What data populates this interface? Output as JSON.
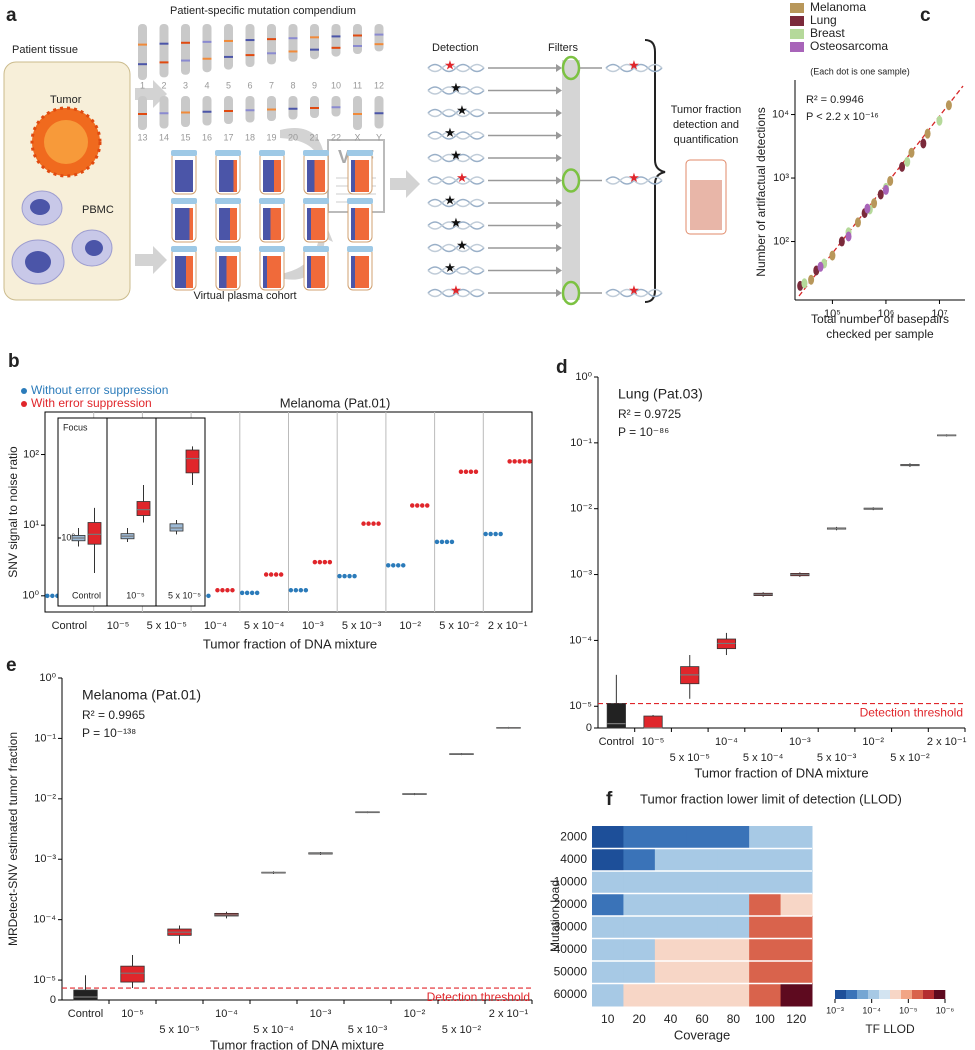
{
  "diagram": {
    "panel": "a",
    "header": "Patient-specific mutation compendium",
    "tissue": "Patient tissue",
    "tumor": "Tumor",
    "pbmc": "PBMC",
    "vcf": "VCF",
    "detection": "Detection",
    "filters": "Filters",
    "result": [
      "Tumor fraction",
      "detection and",
      "quantification"
    ],
    "cohort": "Virtual plasma cohort",
    "chromosomes_row1": [
      "1",
      "2",
      "3",
      "4",
      "5",
      "6",
      "7",
      "8",
      "9",
      "10",
      "11",
      "12"
    ],
    "chromosomes_row2": [
      "13",
      "14",
      "15",
      "16",
      "17",
      "18",
      "19",
      "20",
      "21",
      "22",
      "X",
      "Y"
    ]
  },
  "chart_data": [
    {
      "panel": "c",
      "type": "scatter",
      "annotations": [
        "(Each dot is one sample)",
        "R² = 0.9946",
        "P <  2.2 x 10⁻¹⁶"
      ],
      "xlabel": [
        "Total number of basepairs",
        "checked per sample"
      ],
      "ylabel": "Number of artifactual detections",
      "xscale": "log",
      "yscale": "log",
      "xlim": [
        20000,
        30000000
      ],
      "ylim": [
        12,
        35000
      ],
      "xticks": [
        {
          "value": 100000,
          "label": "10⁵"
        },
        {
          "value": 1000000,
          "label": "10⁶"
        },
        {
          "value": 10000000,
          "label": "10⁷"
        }
      ],
      "yticks": [
        {
          "value": 100,
          "label": "10²"
        },
        {
          "value": 1000,
          "label": "10³"
        },
        {
          "value": 10000,
          "label": "10⁴"
        }
      ],
      "series": [
        {
          "name": "Melanoma",
          "color": "#b8975a",
          "x": [
            40000,
            100000,
            300000,
            600000,
            1200000,
            3000000,
            6000000,
            15000000
          ],
          "y": [
            25,
            60,
            200,
            400,
            900,
            2500,
            5000,
            14000
          ]
        },
        {
          "name": "Lung",
          "color": "#7b2a3b",
          "x": [
            25000,
            50000,
            150000,
            400000,
            800000,
            2000000,
            5000000
          ],
          "y": [
            20,
            35,
            100,
            280,
            550,
            1500,
            3500
          ]
        },
        {
          "name": "Breast",
          "color": "#b5d99a",
          "x": [
            30000,
            70000,
            200000,
            500000,
            1000000,
            2500000,
            10000000
          ],
          "y": [
            22,
            45,
            140,
            320,
            700,
            1800,
            8000
          ]
        },
        {
          "name": "Osteosarcoma",
          "color": "#a864b9",
          "x": [
            60000,
            200000,
            450000,
            1000000
          ],
          "y": [
            40,
            120,
            330,
            650
          ]
        }
      ]
    },
    {
      "panel": "b",
      "type": "dot",
      "title": "Melanoma (Pat.01)",
      "xlabel": "Tumor fraction of DNA mixture",
      "ylabel": "SNV signal to noise ratio",
      "yscale": "log",
      "ylim": [
        0.59,
        400
      ],
      "yticks": [
        {
          "value": 1,
          "label": "10⁰"
        },
        {
          "value": 10,
          "label": "10¹"
        },
        {
          "value": 100,
          "label": "10²"
        }
      ],
      "categories": [
        "Control",
        "10⁻⁵",
        "5 x 10⁻⁵",
        "10⁻⁴",
        "5 x 10⁻⁴",
        "10⁻³",
        "5 x 10⁻³",
        "10⁻²",
        "5 x 10⁻²",
        "2 x 10⁻¹"
      ],
      "series": [
        {
          "name": "Without error suppression",
          "color": "#2b7bba",
          "values": [
            1,
            1,
            1,
            1,
            1.1,
            1.2,
            1.9,
            2.7,
            5.8,
            7.5
          ]
        },
        {
          "name": "With error suppression",
          "color": "#e0262b",
          "values": [
            1,
            1.05,
            1.1,
            1.2,
            2.0,
            3.0,
            10.5,
            19,
            57,
            80
          ]
        }
      ],
      "inset": {
        "title": "Focus",
        "categories": [
          "Control",
          "10⁻⁵",
          "5 x 10⁻⁵"
        ],
        "yscale": "log",
        "ylim": [
          0.3,
          13
        ],
        "yticks": [
          {
            "value": 1,
            "label": "10⁰"
          }
        ],
        "box_colors": [
          "#9dbad6",
          "#e0262b"
        ],
        "boxes": [
          [
            {
              "min": 0.8,
              "q1": 0.93,
              "median": 1.0,
              "q3": 1.07,
              "max": 1.3
            },
            {
              "min": 0.4,
              "q1": 0.85,
              "median": 1.1,
              "q3": 1.5,
              "max": 2.2
            }
          ],
          [
            {
              "min": 0.9,
              "q1": 0.98,
              "median": 1.05,
              "q3": 1.12,
              "max": 1.3
            },
            {
              "min": 1.5,
              "q1": 1.8,
              "median": 2.1,
              "q3": 2.6,
              "max": 4
            }
          ],
          [
            {
              "min": 1.1,
              "q1": 1.2,
              "median": 1.3,
              "q3": 1.45,
              "max": 1.6
            },
            {
              "min": 4,
              "q1": 5.5,
              "median": 8,
              "q3": 10,
              "max": 11
            }
          ]
        ]
      }
    },
    {
      "panel": "d",
      "type": "box",
      "annotations": [
        "Lung (Pat.03)",
        "R² = 0.9725",
        "P = 10⁻⁸⁶"
      ],
      "xlabel": "Tumor fraction of DNA mixture",
      "yscale": "symlog",
      "ylim": [
        0,
        1
      ],
      "yticks": [
        0,
        {
          "value": 1e-05,
          "label": "10⁻⁵"
        },
        {
          "value": 0.0001,
          "label": "10⁻⁴"
        },
        {
          "value": 0.001,
          "label": "10⁻³"
        },
        {
          "value": 0.01,
          "label": "10⁻²"
        },
        {
          "value": 0.1,
          "label": "10⁻¹"
        },
        {
          "value": 1,
          "label": "10⁰"
        }
      ],
      "threshold": {
        "value": 1.1e-05,
        "label": "Detection threshold"
      },
      "categories": [
        "Control",
        "10⁻⁵",
        "5 x 10⁻⁵",
        "10⁻⁴",
        "5 x 10⁻⁴",
        "10⁻³",
        "5 x 10⁻³",
        "10⁻²",
        "5 x 10⁻²",
        "2 x 10⁻¹"
      ],
      "colors": [
        "#222222",
        "#e0262b",
        "#e0262b",
        "#e0262b",
        "#e0262b",
        "#e0262b",
        "#e0262b",
        "#e0262b",
        "#e0262b",
        "#e0262b"
      ],
      "boxes": [
        {
          "min": 0,
          "q1": 0,
          "median": 2e-06,
          "q3": 1.1e-05,
          "max": 3e-05
        },
        {
          "min": 0,
          "q1": 0,
          "median": 0,
          "q3": 5.5e-06,
          "max": 6e-06
        },
        {
          "min": 1.3e-05,
          "q1": 2.2e-05,
          "median": 3e-05,
          "q3": 4e-05,
          "max": 6e-05
        },
        {
          "min": 6e-05,
          "q1": 7.5e-05,
          "median": 9e-05,
          "q3": 0.000105,
          "max": 0.00013
        },
        {
          "min": 0.00046,
          "q1": 0.00048,
          "median": 0.0005,
          "q3": 0.00052,
          "max": 0.00054
        },
        {
          "min": 0.00092,
          "q1": 0.00096,
          "median": 0.001,
          "q3": 0.00104,
          "max": 0.00108
        },
        {
          "min": 0.0047,
          "q1": 0.0049,
          "median": 0.005,
          "q3": 0.0051,
          "max": 0.0053
        },
        {
          "min": 0.0095,
          "q1": 0.0098,
          "median": 0.01,
          "q3": 0.0102,
          "max": 0.0105
        },
        {
          "min": 0.043,
          "q1": 0.045,
          "median": 0.046,
          "q3": 0.047,
          "max": 0.049
        },
        {
          "min": 0.125,
          "q1": 0.128,
          "median": 0.13,
          "q3": 0.132,
          "max": 0.135
        }
      ]
    },
    {
      "panel": "e",
      "type": "box",
      "annotations": [
        "Melanoma (Pat.01)",
        "R² = 0.9965",
        "P = 10⁻¹³⁸"
      ],
      "xlabel": "Tumor fraction of DNA mixture",
      "ylabel": "MRDetect-SNV estimated tumor fraction",
      "yscale": "symlog",
      "ylim": [
        0,
        1
      ],
      "yticks": [
        0,
        {
          "value": 1e-05,
          "label": "10⁻⁵"
        },
        {
          "value": 0.0001,
          "label": "10⁻⁴"
        },
        {
          "value": 0.001,
          "label": "10⁻³"
        },
        {
          "value": 0.01,
          "label": "10⁻²"
        },
        {
          "value": 0.1,
          "label": "10⁻¹"
        },
        {
          "value": 1,
          "label": "10⁰"
        }
      ],
      "threshold": {
        "value": 6e-06,
        "label": "Detection threshold"
      },
      "categories": [
        "Control",
        "10⁻⁵",
        "5 x 10⁻⁵",
        "10⁻⁴",
        "5 x 10⁻⁴",
        "10⁻³",
        "5 x 10⁻³",
        "10⁻²",
        "5 x 10⁻²",
        "2 x 10⁻¹"
      ],
      "colors": [
        "#222222",
        "#e0262b",
        "#e0262b",
        "#e0262b",
        "#e0262b",
        "#e0262b",
        "#e0262b",
        "#e0262b",
        "#e0262b",
        "#e0262b"
      ],
      "boxes": [
        {
          "min": 0,
          "q1": 0,
          "median": 1.5e-06,
          "q3": 5e-06,
          "max": 1.2e-05
        },
        {
          "min": 6e-06,
          "q1": 9e-06,
          "median": 1.3e-05,
          "q3": 1.7e-05,
          "max": 2.6e-05
        },
        {
          "min": 4e-05,
          "q1": 5.5e-05,
          "median": 6.2e-05,
          "q3": 7e-05,
          "max": 8e-05
        },
        {
          "min": 0.000105,
          "q1": 0.000115,
          "median": 0.00012,
          "q3": 0.000127,
          "max": 0.000135
        },
        {
          "min": 0.00057,
          "q1": 0.00059,
          "median": 0.0006,
          "q3": 0.00061,
          "max": 0.00063
        },
        {
          "min": 0.00118,
          "q1": 0.00122,
          "median": 0.00125,
          "q3": 0.00128,
          "max": 0.00132
        },
        {
          "min": 0.0058,
          "q1": 0.0059,
          "median": 0.006,
          "q3": 0.0061,
          "max": 0.0062
        },
        {
          "min": 0.0115,
          "q1": 0.0118,
          "median": 0.012,
          "q3": 0.0122,
          "max": 0.0125
        },
        {
          "min": 0.053,
          "q1": 0.054,
          "median": 0.055,
          "q3": 0.056,
          "max": 0.057
        },
        {
          "min": 0.145,
          "q1": 0.148,
          "median": 0.15,
          "q3": 0.152,
          "max": 0.155
        }
      ]
    },
    {
      "panel": "f",
      "type": "heatmap",
      "title": "Tumor fraction lower limit of detection (LLOD)",
      "xlabel": "Coverage",
      "ylabel": "Mutation load",
      "x": [
        10,
        20,
        40,
        60,
        80,
        100,
        120
      ],
      "y": [
        2000,
        4000,
        10000,
        20000,
        30000,
        40000,
        50000,
        60000
      ],
      "values": [
        [
          0.001,
          0.0003,
          0.0003,
          0.0003,
          0.0003,
          0.0001,
          0.0001
        ],
        [
          0.001,
          0.0003,
          0.0001,
          0.0001,
          0.0001,
          0.0001,
          0.0001
        ],
        [
          0.0001,
          0.0001,
          0.0001,
          0.0001,
          0.0001,
          0.0001,
          0.0001
        ],
        [
          0.0003,
          0.0001,
          0.0001,
          0.0001,
          0.0001,
          5e-06,
          2e-05
        ],
        [
          0.0001,
          0.0001,
          0.0001,
          0.0001,
          0.0001,
          5e-06,
          5e-06
        ],
        [
          0.0001,
          0.0001,
          2e-05,
          2e-05,
          2e-05,
          5e-06,
          5e-06
        ],
        [
          0.0001,
          0.0001,
          2e-05,
          2e-05,
          2e-05,
          5e-06,
          5e-06
        ],
        [
          0.0001,
          2e-05,
          2e-05,
          2e-05,
          2e-05,
          5e-06,
          1e-06
        ]
      ],
      "clim": [
        0.001,
        1e-06
      ],
      "colors": [
        "#1d4f99",
        "#3a73b8",
        "#75a6d3",
        "#a7c9e5",
        "#d3e4f1",
        "#f7d6c6",
        "#f2a585",
        "#d9634c",
        "#b42d30",
        "#5e0a1f"
      ],
      "colorbar": {
        "label": "TF LLOD",
        "ticks": [
          {
            "value": 0.001,
            "label": "10⁻³"
          },
          {
            "value": 0.0001,
            "label": "10⁻⁴"
          },
          {
            "value": 1e-05,
            "label": "10⁻⁵"
          },
          {
            "value": 1e-06,
            "label": "10⁻⁶"
          }
        ]
      }
    }
  ]
}
